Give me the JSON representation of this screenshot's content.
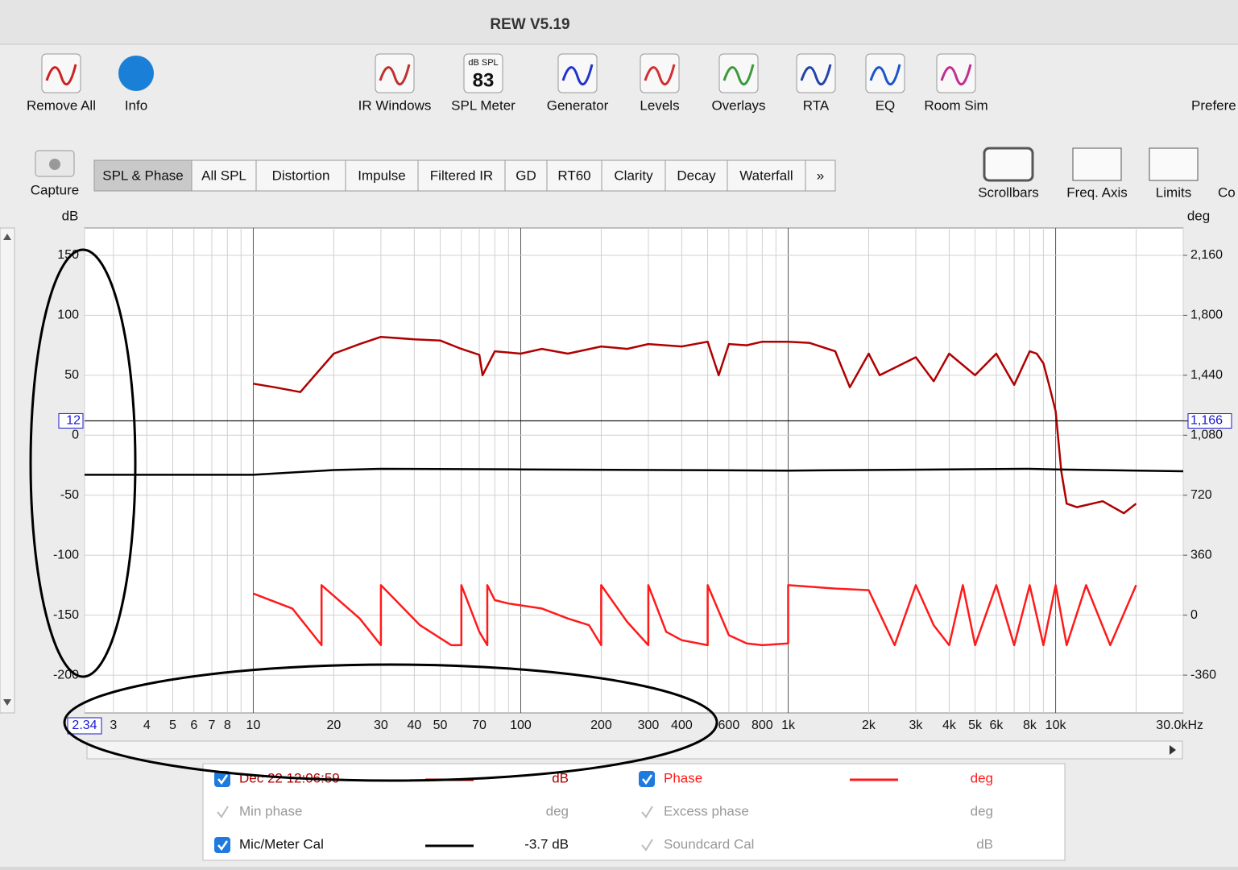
{
  "window": {
    "title": "REW V5.19"
  },
  "toolbar": [
    {
      "label": "Remove All"
    },
    {
      "label": "Info"
    },
    {
      "label": "IR Windows"
    },
    {
      "label": "SPL Meter",
      "icon_caption": "dB SPL",
      "icon_reading": "83"
    },
    {
      "label": "Generator"
    },
    {
      "label": "Levels"
    },
    {
      "label": "Overlays"
    },
    {
      "label": "RTA"
    },
    {
      "label": "EQ"
    },
    {
      "label": "Room Sim"
    },
    {
      "label": "Prefere"
    }
  ],
  "capture": "Capture",
  "tabs": [
    "SPL & Phase",
    "All SPL",
    "Distortion",
    "Impulse",
    "Filtered IR",
    "GD",
    "RT60",
    "Clarity",
    "Decay",
    "Waterfall",
    "»"
  ],
  "selected_tab": 0,
  "right_tools": [
    "Scrollbars",
    "Freq. Axis",
    "Limits",
    "Co"
  ],
  "chart_data": {
    "type": "line",
    "ylabel": "dB",
    "y2label": "deg",
    "xscale": "log",
    "xlim": [
      2.34,
      30000
    ],
    "xticks": [
      2.34,
      3,
      4,
      5,
      6,
      7,
      8,
      10,
      20,
      30,
      40,
      50,
      70,
      100,
      200,
      300,
      400,
      {
        "value": 600,
        "label": "600"
      },
      800,
      {
        "value": 1000,
        "label": "1k"
      },
      {
        "value": 2000,
        "label": "2k"
      },
      {
        "value": 3000,
        "label": "3k"
      },
      {
        "value": 4000,
        "label": "4k"
      },
      {
        "value": 5000,
        "label": "5k"
      },
      {
        "value": 6000,
        "label": "6k"
      },
      {
        "value": 8000,
        "label": "8k"
      },
      {
        "value": 10000,
        "label": "10k"
      },
      {
        "value": 30000,
        "label": "30.0kHz"
      }
    ],
    "xgrid_minor": [
      9,
      60,
      80,
      90,
      500,
      700,
      900,
      7000,
      9000,
      20000
    ],
    "ylim": [
      -231.5,
      172.8
    ],
    "yticks": [
      150,
      100,
      50,
      0,
      -50,
      -100,
      -150,
      -200
    ],
    "y2lim": [
      -586.8,
      2324.2
    ],
    "y2ticks": [
      {
        "value": 2160,
        "label": "2,160"
      },
      {
        "value": 1800,
        "label": "1,800"
      },
      {
        "value": 1440,
        "label": "1,440"
      },
      {
        "value": 1080,
        "label": "1,080"
      },
      720,
      360,
      0,
      -360
    ],
    "grid": true,
    "cursor_y": 12,
    "cursor_y2": {
      "value": 1166,
      "label": "1,166"
    },
    "series": [
      {
        "name": "Dec 22 12:06:59",
        "color": "#b00000",
        "unit": "dB",
        "checked": true,
        "x": [
          10,
          12,
          15,
          17,
          20,
          25,
          30,
          40,
          50,
          60,
          70,
          72,
          80,
          100,
          120,
          150,
          200,
          250,
          300,
          400,
          500,
          550,
          600,
          700,
          800,
          900,
          1000,
          1200,
          1500,
          1700,
          2000,
          2200,
          3000,
          3500,
          4000,
          5000,
          6000,
          7000,
          8000,
          8500,
          9000,
          9500,
          10000,
          10500,
          11000,
          12000,
          15000,
          18000,
          20000
        ],
        "values": [
          43,
          40,
          36,
          50,
          68,
          76,
          82,
          80,
          79,
          72,
          67,
          50,
          70,
          68,
          72,
          68,
          74,
          72,
          76,
          74,
          78,
          50,
          76,
          75,
          78,
          78,
          78,
          77,
          70,
          40,
          68,
          50,
          65,
          45,
          68,
          50,
          68,
          42,
          70,
          68,
          60,
          40,
          20,
          -30,
          -57,
          -60,
          -55,
          -65,
          -57
        ]
      },
      {
        "name": "Phase",
        "color": "#ff1a1a",
        "unit": "deg",
        "checked": true,
        "axis": "y2",
        "x": [
          10,
          14,
          18,
          18,
          25,
          30,
          30,
          42,
          55,
          60,
          60,
          70,
          75,
          75,
          80,
          90,
          120,
          150,
          180,
          200,
          200,
          250,
          300,
          300,
          350,
          400,
          500,
          500,
          600,
          700,
          800,
          1000,
          1000,
          1500,
          2000,
          2500,
          3000,
          3500,
          4000,
          4500,
          5000,
          6000,
          7000,
          8000,
          9000,
          10000,
          11000,
          13000,
          16000,
          20000
        ],
        "values": [
          130,
          40,
          -180,
          180,
          -20,
          -180,
          180,
          -60,
          -180,
          -180,
          180,
          -100,
          -180,
          180,
          90,
          70,
          40,
          -20,
          -60,
          -180,
          180,
          -40,
          -180,
          180,
          -100,
          -150,
          -180,
          180,
          -120,
          -170,
          -180,
          -170,
          180,
          160,
          150,
          -180,
          180,
          -60,
          -180,
          180,
          -180,
          180,
          -180,
          180,
          -180,
          180,
          -180,
          180,
          -180,
          180
        ]
      },
      {
        "name": "Mic/Meter Cal",
        "color": "#000000",
        "unit": "-3.7 dB",
        "checked": true,
        "x": [
          2.34,
          10,
          20,
          30,
          100,
          1000,
          8000,
          10000,
          30000
        ],
        "values": [
          -33,
          -33,
          -29,
          -28,
          -28.5,
          -29.5,
          -28,
          -28.5,
          -30
        ]
      }
    ]
  },
  "legend_extra": [
    {
      "name": "Min phase",
      "unit": "deg"
    },
    {
      "name": "Excess phase",
      "unit": "deg"
    },
    {
      "name": "Soundcard Cal",
      "unit": "dB"
    }
  ]
}
